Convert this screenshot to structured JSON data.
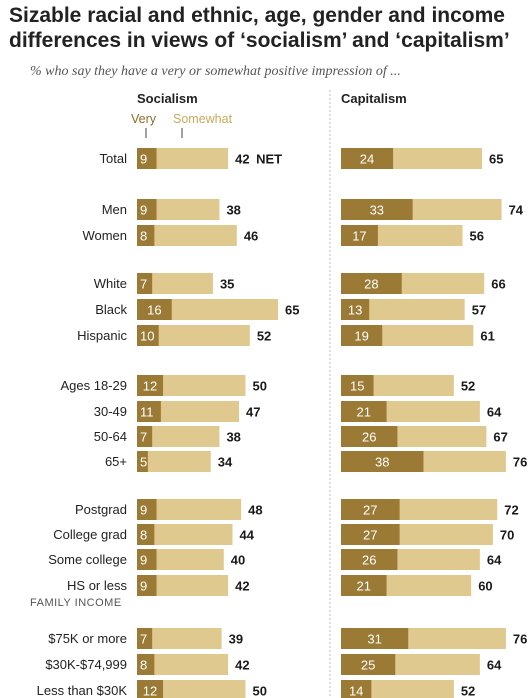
{
  "title": "Sizable racial and ethnic, age, gender and income differences in views of ‘socialism’ and ‘capitalism’",
  "subtitle": "% who say they have a very or somewhat positive impression of ...",
  "colors": {
    "very": "#9b7a35",
    "somewhat": "#e0c98e",
    "legend_very": "#8b6b2a",
    "legend_somewhat": "#c9a95a",
    "divider": "#bdbdbd"
  },
  "chart_data": {
    "type": "bar",
    "orientation": "horizontal",
    "stacked": true,
    "legend": [
      "Very",
      "Somewhat"
    ],
    "net_label": "NET",
    "groups": [
      {
        "heading": "",
        "categories": [
          "Total"
        ]
      },
      {
        "heading": "",
        "categories": [
          "Men",
          "Women"
        ]
      },
      {
        "heading": "",
        "categories": [
          "White",
          "Black",
          "Hispanic"
        ]
      },
      {
        "heading": "",
        "categories": [
          "Ages 18-29",
          "30-49",
          "50-64",
          "65+"
        ]
      },
      {
        "heading": "",
        "categories": [
          "Postgrad",
          "College grad",
          "Some college",
          "HS or less"
        ]
      },
      {
        "heading": "FAMILY INCOME",
        "categories": [
          "$75K or more",
          "$30K-$74,999",
          "Less than $30K"
        ]
      }
    ],
    "panels": [
      {
        "title": "Socialism",
        "very": [
          9,
          9,
          8,
          7,
          16,
          10,
          12,
          11,
          7,
          5,
          9,
          8,
          9,
          9,
          7,
          8,
          12
        ],
        "net": [
          42,
          38,
          46,
          35,
          65,
          52,
          50,
          47,
          38,
          34,
          48,
          44,
          40,
          42,
          39,
          42,
          50
        ]
      },
      {
        "title": "Capitalism",
        "very": [
          24,
          33,
          17,
          28,
          13,
          19,
          15,
          21,
          26,
          38,
          27,
          27,
          26,
          21,
          31,
          25,
          14
        ],
        "net": [
          65,
          74,
          56,
          66,
          57,
          61,
          52,
          64,
          67,
          76,
          72,
          70,
          64,
          60,
          76,
          64,
          52
        ]
      }
    ]
  }
}
